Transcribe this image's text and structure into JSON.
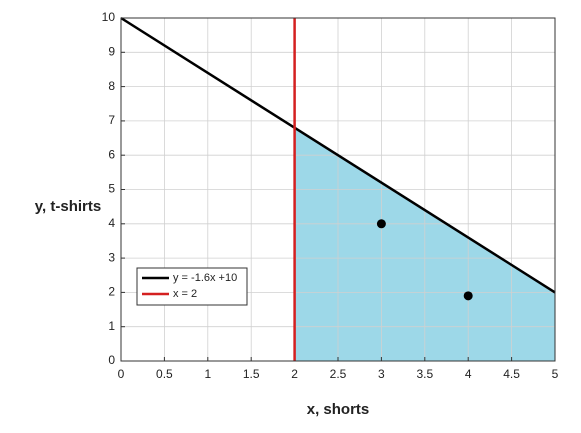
{
  "chart_data": {
    "type": "line",
    "xlabel": "x, shorts",
    "ylabel": "y, t-shirts",
    "xlim": [
      0,
      5
    ],
    "ylim": [
      0,
      10
    ],
    "xticks": [
      0,
      0.5,
      1,
      1.5,
      2,
      2.5,
      3,
      3.5,
      4,
      4.5,
      5
    ],
    "yticks": [
      0,
      1,
      2,
      3,
      4,
      5,
      6,
      7,
      8,
      9,
      10
    ],
    "grid": true,
    "legend": "lower left",
    "region": {
      "color": "#9dd8e8",
      "x": [
        2,
        2,
        5,
        5
      ],
      "values": [
        0,
        6.8,
        2,
        0
      ]
    },
    "series": [
      {
        "name": "y = -1.6x +10",
        "color": "#000000",
        "x": [
          0,
          5
        ],
        "values": [
          10,
          2
        ]
      },
      {
        "name": "x = 2",
        "color": "#d42020",
        "x": [
          2,
          2
        ],
        "values": [
          0,
          10
        ]
      }
    ],
    "points": {
      "color": "#000000",
      "x": [
        3,
        4
      ],
      "values": [
        4,
        1.9
      ]
    }
  }
}
